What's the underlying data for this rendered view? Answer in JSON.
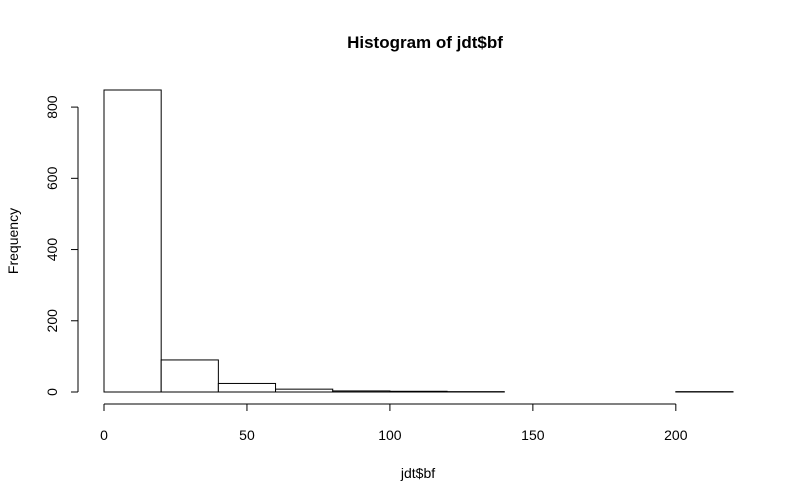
{
  "chart_data": {
    "type": "bar",
    "title": "Histogram of jdt$bf",
    "xlabel": "jdt$bf",
    "ylabel": "Frequency",
    "bins": [
      {
        "from": 0,
        "to": 20,
        "count": 848
      },
      {
        "from": 20,
        "to": 40,
        "count": 90
      },
      {
        "from": 40,
        "to": 60,
        "count": 24
      },
      {
        "from": 60,
        "to": 80,
        "count": 8
      },
      {
        "from": 80,
        "to": 100,
        "count": 3
      },
      {
        "from": 100,
        "to": 120,
        "count": 2
      },
      {
        "from": 120,
        "to": 140,
        "count": 1
      },
      {
        "from": 140,
        "to": 160,
        "count": 0
      },
      {
        "from": 160,
        "to": 180,
        "count": 0
      },
      {
        "from": 180,
        "to": 200,
        "count": 0
      },
      {
        "from": 200,
        "to": 220,
        "count": 1
      }
    ],
    "xlim": [
      0,
      220
    ],
    "ylim": [
      0,
      848
    ],
    "xticks": [
      0,
      50,
      100,
      150,
      200
    ],
    "yticks": [
      0,
      200,
      400,
      600,
      800
    ],
    "grid": false,
    "legend": "none"
  }
}
